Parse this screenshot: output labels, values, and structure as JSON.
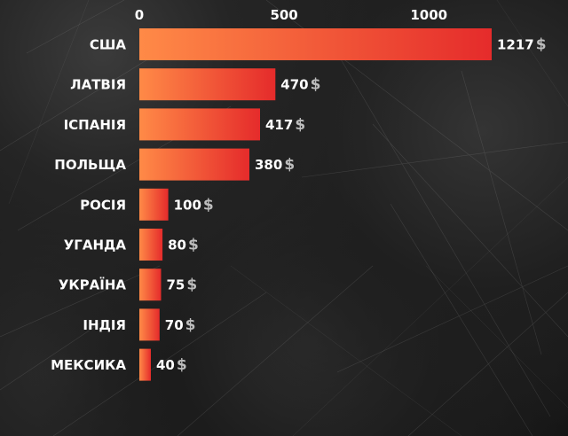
{
  "colors": {
    "bar_start": "#ff8a47",
    "bar_end": "#e52b2b",
    "text": "#ffffff",
    "unit": "#bdbdbd"
  },
  "chart_data": {
    "type": "bar",
    "orientation": "horizontal",
    "categories": [
      "США",
      "ЛАТВІЯ",
      "ІСПАНІЯ",
      "ПОЛЬЩА",
      "РОСІЯ",
      "УГАНДА",
      "УКРАЇНА",
      "ІНДІЯ",
      "МЕКСИКА"
    ],
    "values": [
      1217,
      470,
      417,
      380,
      100,
      80,
      75,
      70,
      40
    ],
    "value_labels": [
      "1217",
      "470",
      "417",
      "380",
      "100",
      "80",
      "75",
      "70",
      "40"
    ],
    "unit": "$",
    "title": "",
    "xlabel": "",
    "ylabel": "",
    "x_ticks": [
      0,
      500,
      1000
    ],
    "x_tick_labels": [
      "0",
      "500",
      "1000"
    ],
    "x_axis_position": "top",
    "xlim": [
      0,
      1217
    ],
    "grid": false,
    "legend": "none"
  }
}
